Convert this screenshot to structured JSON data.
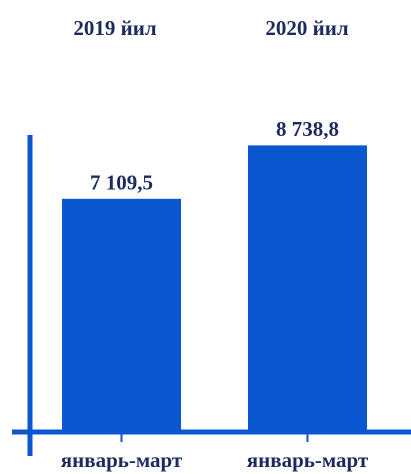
{
  "chart_data": {
    "type": "bar",
    "column_titles": [
      "2019 йил",
      "2020 йил"
    ],
    "categories": [
      "январь-март",
      "январь-март"
    ],
    "values": [
      7109.5,
      8738.8
    ],
    "value_labels": [
      "7 109,5",
      "8 738,8"
    ],
    "color": "#0a57d0",
    "ylim": [
      0,
      10000
    ]
  }
}
